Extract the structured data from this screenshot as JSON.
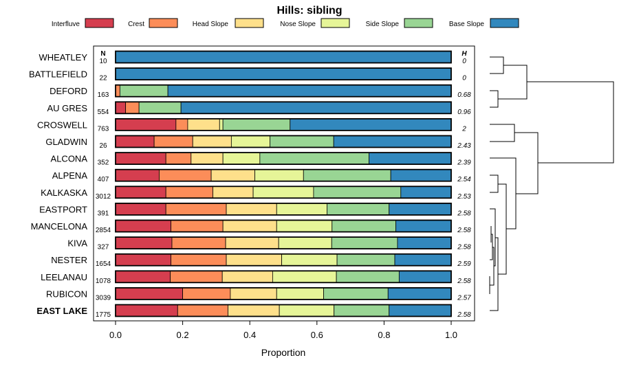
{
  "chart_data": {
    "type": "bar",
    "stacked": true,
    "orientation": "horizontal",
    "title": "Hills: sibling",
    "xlabel": "Proportion",
    "xlim": [
      0,
      1
    ],
    "x_ticks": [
      "0.0",
      "0.2",
      "0.4",
      "0.6",
      "0.8",
      "1.0"
    ],
    "n_header": "N",
    "h_header": "H",
    "legend_position": "top",
    "series": [
      {
        "name": "Interfluve",
        "color": "#D53E4F"
      },
      {
        "name": "Crest",
        "color": "#FC8D59"
      },
      {
        "name": "Head Slope",
        "color": "#FEE08B"
      },
      {
        "name": "Nose Slope",
        "color": "#E6F598"
      },
      {
        "name": "Side Slope",
        "color": "#99D594"
      },
      {
        "name": "Base Slope",
        "color": "#3288BD"
      }
    ],
    "rows": [
      {
        "name": "WHEATLEY",
        "n": "10",
        "h": "0",
        "bold": false,
        "values": [
          0,
          0,
          0,
          0,
          0,
          1.0
        ]
      },
      {
        "name": "BATTLEFIELD",
        "n": "22",
        "h": "0",
        "bold": false,
        "values": [
          0,
          0,
          0,
          0,
          0,
          1.0
        ]
      },
      {
        "name": "DEFORD",
        "n": "163",
        "h": "0.68",
        "bold": false,
        "values": [
          0,
          0.013,
          0,
          0,
          0.143,
          0.844
        ]
      },
      {
        "name": "AU GRES",
        "n": "554",
        "h": "0.96",
        "bold": false,
        "values": [
          0.03,
          0.04,
          0,
          0,
          0.125,
          0.805
        ]
      },
      {
        "name": "CROSWELL",
        "n": "763",
        "h": "2",
        "bold": false,
        "values": [
          0.18,
          0.035,
          0.095,
          0.01,
          0.2,
          0.48
        ]
      },
      {
        "name": "GLADWIN",
        "n": "26",
        "h": "2.43",
        "bold": false,
        "values": [
          0.115,
          0.115,
          0.115,
          0.115,
          0.19,
          0.35
        ]
      },
      {
        "name": "ALCONA",
        "n": "352",
        "h": "2.39",
        "bold": false,
        "values": [
          0.15,
          0.075,
          0.095,
          0.11,
          0.325,
          0.245
        ]
      },
      {
        "name": "ALPENA",
        "n": "407",
        "h": "2.54",
        "bold": false,
        "values": [
          0.13,
          0.155,
          0.13,
          0.145,
          0.26,
          0.18
        ]
      },
      {
        "name": "KALKASKA",
        "n": "3012",
        "h": "2.53",
        "bold": false,
        "values": [
          0.15,
          0.14,
          0.12,
          0.18,
          0.26,
          0.15
        ]
      },
      {
        "name": "EASTPORT",
        "n": "391",
        "h": "2.58",
        "bold": false,
        "values": [
          0.15,
          0.18,
          0.15,
          0.15,
          0.185,
          0.185
        ]
      },
      {
        "name": "MANCELONA",
        "n": "2854",
        "h": "2.58",
        "bold": false,
        "values": [
          0.165,
          0.155,
          0.16,
          0.165,
          0.19,
          0.165
        ]
      },
      {
        "name": "KIVA",
        "n": "327",
        "h": "2.58",
        "bold": false,
        "values": [
          0.168,
          0.16,
          0.158,
          0.158,
          0.196,
          0.16
        ]
      },
      {
        "name": "NESTER",
        "n": "1654",
        "h": "2.59",
        "bold": false,
        "values": [
          0.165,
          0.165,
          0.165,
          0.165,
          0.172,
          0.168
        ]
      },
      {
        "name": "LEELANAU",
        "n": "1078",
        "h": "2.58",
        "bold": false,
        "values": [
          0.163,
          0.155,
          0.15,
          0.19,
          0.187,
          0.155
        ]
      },
      {
        "name": "RUBICON",
        "n": "3039",
        "h": "2.57",
        "bold": false,
        "values": [
          0.2,
          0.142,
          0.138,
          0.14,
          0.192,
          0.188
        ]
      },
      {
        "name": "EAST LAKE",
        "n": "1775",
        "h": "2.58",
        "bold": true,
        "values": [
          0.185,
          0.15,
          0.153,
          0.163,
          0.164,
          0.185
        ]
      }
    ]
  }
}
